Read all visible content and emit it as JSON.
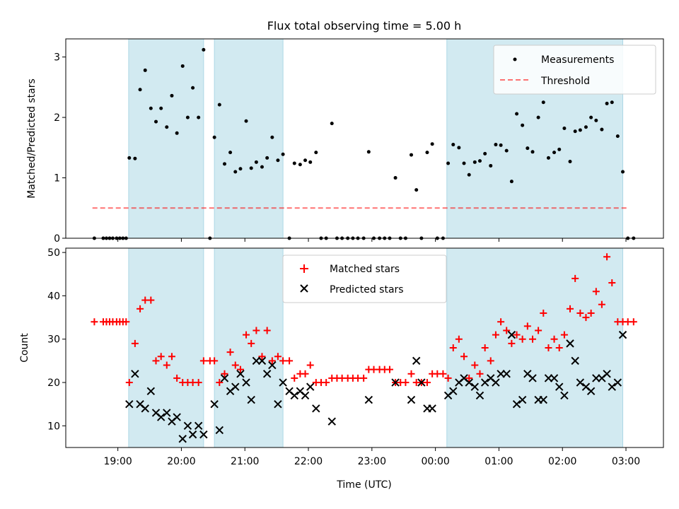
{
  "title": "Flux total observing time = 5.00 h",
  "colors": {
    "shade": "#add8e6",
    "threshold": "#ff0000",
    "matched": "#ff0000",
    "predicted": "#000000",
    "measurement": "#000000"
  },
  "chart_data": [
    {
      "type": "scatter",
      "ylabel": "Matched/Predicted stars",
      "ylim": [
        0,
        3.3
      ],
      "xlim": [
        18.18,
        27.59
      ],
      "yticks": [
        0,
        1,
        2,
        3
      ],
      "xticks": [
        19,
        20,
        21,
        22,
        23,
        24,
        25,
        26,
        27
      ],
      "legend": {
        "placement": "upper-right",
        "entries": [
          "Measurements",
          "Threshold"
        ]
      },
      "threshold": {
        "name": "Threshold",
        "value": 0.5,
        "x_range": [
          18.6,
          27.05
        ]
      },
      "shaded_intervals": [
        [
          19.17,
          20.35
        ],
        [
          20.52,
          21.6
        ],
        [
          24.18,
          26.95
        ]
      ],
      "series": [
        {
          "name": "Measurements",
          "x": [
            18.63,
            18.77,
            18.82,
            18.87,
            18.92,
            18.98,
            19.03,
            19.08,
            19.13,
            19.18,
            19.27,
            19.35,
            19.43,
            19.52,
            19.6,
            19.68,
            19.77,
            19.85,
            19.93,
            20.02,
            20.1,
            20.18,
            20.27,
            20.35,
            20.45,
            20.52,
            20.6,
            20.68,
            20.77,
            20.85,
            20.93,
            21.02,
            21.1,
            21.18,
            21.27,
            21.35,
            21.43,
            21.52,
            21.6,
            21.7,
            21.78,
            21.87,
            21.95,
            22.03,
            22.12,
            22.2,
            22.28,
            22.37,
            22.45,
            22.53,
            22.62,
            22.7,
            22.78,
            22.87,
            22.95,
            23.03,
            23.12,
            23.2,
            23.28,
            23.37,
            23.45,
            23.53,
            23.62,
            23.7,
            23.78,
            23.87,
            23.95,
            24.03,
            24.12,
            24.2,
            24.28,
            24.37,
            24.45,
            24.53,
            24.62,
            24.7,
            24.78,
            24.87,
            24.95,
            25.03,
            25.12,
            25.2,
            25.28,
            25.37,
            25.45,
            25.53,
            25.62,
            25.7,
            25.78,
            25.87,
            25.95,
            26.03,
            26.12,
            26.2,
            26.28,
            26.37,
            26.45,
            26.53,
            26.62,
            26.7,
            26.78,
            26.87,
            26.95,
            27.03,
            27.12
          ],
          "y": [
            0,
            0,
            0,
            0,
            0,
            0,
            0,
            0,
            0,
            1.33,
            1.32,
            2.46,
            2.78,
            2.15,
            1.93,
            2.15,
            1.84,
            2.36,
            1.74,
            2.85,
            2.0,
            2.49,
            2.0,
            3.12,
            0,
            1.67,
            2.21,
            1.23,
            1.42,
            1.1,
            1.15,
            1.94,
            1.16,
            1.26,
            1.18,
            1.33,
            1.67,
            1.29,
            1.39,
            0,
            1.24,
            1.22,
            1.29,
            1.26,
            1.42,
            0,
            0,
            1.9,
            0,
            0,
            0,
            0,
            0,
            0,
            1.43,
            0,
            0,
            0,
            0,
            1.0,
            0,
            0,
            1.38,
            0.8,
            0,
            1.42,
            1.56,
            0,
            0,
            1.24,
            1.55,
            1.5,
            1.24,
            1.05,
            1.26,
            1.28,
            1.4,
            1.2,
            1.55,
            1.54,
            1.45,
            0.94,
            2.06,
            1.87,
            1.49,
            1.43,
            2.0,
            2.25,
            1.33,
            1.42,
            1.47,
            1.82,
            1.27,
            1.77,
            1.79,
            1.84,
            2.0,
            1.95,
            1.8,
            2.23,
            2.25,
            1.69,
            1.1,
            0,
            0
          ]
        }
      ]
    },
    {
      "type": "scatter",
      "xlabel": "Time (UTC)",
      "ylabel": "Count",
      "ylim": [
        5,
        51
      ],
      "xlim": [
        18.18,
        27.59
      ],
      "yticks": [
        10,
        20,
        30,
        40,
        50
      ],
      "xticks": [
        19,
        20,
        21,
        22,
        23,
        24,
        25,
        26,
        27
      ],
      "xtick_labels": [
        "19:00",
        "20:00",
        "21:00",
        "22:00",
        "23:00",
        "00:00",
        "01:00",
        "02:00",
        "03:00"
      ],
      "legend": {
        "placement": "upper-center",
        "entries": [
          "Matched stars",
          "Predicted stars"
        ]
      },
      "shaded_intervals": [
        [
          19.17,
          20.35
        ],
        [
          20.52,
          21.6
        ],
        [
          24.18,
          26.95
        ]
      ],
      "series": [
        {
          "name": "Matched stars",
          "marker": "plus",
          "x": [
            18.63,
            18.77,
            18.82,
            18.87,
            18.92,
            18.98,
            19.03,
            19.08,
            19.13,
            19.18,
            19.27,
            19.35,
            19.43,
            19.52,
            19.6,
            19.68,
            19.77,
            19.85,
            19.93,
            20.02,
            20.1,
            20.18,
            20.27,
            20.35,
            20.45,
            20.52,
            20.6,
            20.68,
            20.77,
            20.85,
            20.93,
            21.02,
            21.1,
            21.18,
            21.27,
            21.35,
            21.43,
            21.52,
            21.6,
            21.7,
            21.78,
            21.87,
            21.95,
            22.03,
            22.12,
            22.2,
            22.28,
            22.37,
            22.45,
            22.53,
            22.62,
            22.7,
            22.78,
            22.87,
            22.95,
            23.03,
            23.12,
            23.2,
            23.28,
            23.37,
            23.45,
            23.53,
            23.62,
            23.7,
            23.78,
            23.87,
            23.95,
            24.03,
            24.12,
            24.2,
            24.28,
            24.37,
            24.45,
            24.53,
            24.62,
            24.7,
            24.78,
            24.87,
            24.95,
            25.03,
            25.12,
            25.2,
            25.28,
            25.37,
            25.45,
            25.53,
            25.62,
            25.7,
            25.78,
            25.87,
            25.95,
            26.03,
            26.12,
            26.2,
            26.28,
            26.37,
            26.45,
            26.53,
            26.62,
            26.7,
            26.78,
            26.87,
            26.95,
            27.03,
            27.12
          ],
          "y": [
            34,
            34,
            34,
            34,
            34,
            34,
            34,
            34,
            34,
            20,
            29,
            37,
            39,
            39,
            25,
            26,
            24,
            26,
            21,
            20,
            20,
            20,
            20,
            25,
            25,
            25,
            20,
            22,
            27,
            24,
            23,
            31,
            29,
            32,
            26,
            32,
            25,
            26,
            25,
            25,
            21,
            22,
            22,
            24,
            20,
            20,
            20,
            21,
            21,
            21,
            21,
            21,
            21,
            21,
            23,
            23,
            23,
            23,
            23,
            20,
            20,
            20,
            22,
            20,
            20,
            20,
            22,
            22,
            22,
            21,
            28,
            30,
            26,
            21,
            24,
            22,
            28,
            25,
            31,
            34,
            32,
            29,
            31,
            30,
            33,
            30,
            32,
            36,
            28,
            30,
            28,
            31,
            37,
            44,
            36,
            35,
            36,
            41,
            38,
            49,
            43,
            34,
            34,
            34,
            34
          ]
        },
        {
          "name": "Predicted stars",
          "marker": "x",
          "x": [
            19.18,
            19.27,
            19.35,
            19.43,
            19.52,
            19.6,
            19.68,
            19.77,
            19.85,
            19.93,
            20.02,
            20.1,
            20.18,
            20.27,
            20.35,
            20.52,
            20.6,
            20.68,
            20.77,
            20.85,
            20.93,
            21.02,
            21.1,
            21.18,
            21.27,
            21.35,
            21.43,
            21.52,
            21.6,
            21.7,
            21.78,
            21.87,
            21.95,
            22.03,
            22.12,
            22.37,
            22.95,
            23.37,
            23.62,
            23.7,
            23.78,
            23.87,
            23.95,
            24.2,
            24.28,
            24.37,
            24.45,
            24.53,
            24.62,
            24.7,
            24.78,
            24.87,
            24.95,
            25.03,
            25.12,
            25.2,
            25.28,
            25.37,
            25.45,
            25.53,
            25.62,
            25.7,
            25.78,
            25.87,
            25.95,
            26.03,
            26.12,
            26.2,
            26.28,
            26.37,
            26.45,
            26.53,
            26.62,
            26.7,
            26.78,
            26.87,
            26.95
          ],
          "y": [
            15,
            22,
            15,
            14,
            18,
            13,
            12,
            13,
            11,
            12,
            7,
            10,
            8,
            10,
            8,
            15,
            9,
            21,
            18,
            19,
            22,
            20,
            16,
            25,
            25,
            22,
            24,
            15,
            20,
            18,
            17,
            18,
            17,
            19,
            14,
            11,
            16,
            20,
            16,
            25,
            20,
            14,
            14,
            17,
            18,
            20,
            21,
            20,
            19,
            17,
            20,
            21,
            20,
            22,
            22,
            31,
            15,
            16,
            22,
            21,
            16,
            16,
            21,
            21,
            19,
            17,
            29,
            25,
            20,
            19,
            18,
            21,
            21,
            22,
            19,
            20,
            31
          ]
        }
      ]
    }
  ]
}
